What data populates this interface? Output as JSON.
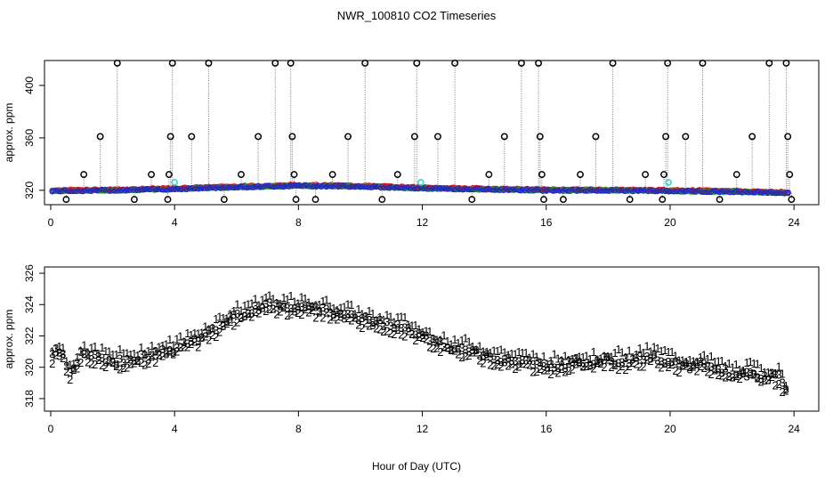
{
  "chart_data": {
    "type": "scatter",
    "title": "NWR_100810  CO2 Timeseries",
    "xlabel": "Hour of Day (UTC)",
    "colors": {
      "black": "#000000",
      "red": "#e41a1c",
      "green": "#1fa51f",
      "blue": "#1f1fd0",
      "cyan": "#33d6d6",
      "gray": "#7a7a7a"
    },
    "panels": [
      {
        "id": "top",
        "ylabel": "approx. ppm",
        "xlim": [
          -0.2,
          24.8
        ],
        "ylim": [
          309,
          419
        ],
        "xticks": [
          0,
          4,
          8,
          12,
          16,
          20,
          24
        ],
        "yticks": [
          320,
          360,
          400
        ],
        "xtick_labels": [
          "0",
          "4",
          "8",
          "12",
          "16",
          "20",
          "24"
        ],
        "ytick_labels": [
          "320",
          "360",
          "400"
        ],
        "cal_spikes": [
          {
            "x": 1.07,
            "y": 332
          },
          {
            "x": 1.6,
            "y": 361
          },
          {
            "x": 2.15,
            "y": 417
          },
          {
            "x": 2.7,
            "y": 313
          },
          {
            "x": 3.25,
            "y": 332
          },
          {
            "x": 3.78,
            "y": 313
          },
          {
            "x": 3.82,
            "y": 332
          },
          {
            "x": 3.87,
            "y": 361
          },
          {
            "x": 3.93,
            "y": 417
          },
          {
            "x": 4.55,
            "y": 361
          },
          {
            "x": 5.1,
            "y": 417
          },
          {
            "x": 5.6,
            "y": 313
          },
          {
            "x": 6.15,
            "y": 332
          },
          {
            "x": 6.7,
            "y": 361
          },
          {
            "x": 7.25,
            "y": 417
          },
          {
            "x": 7.75,
            "y": 417
          },
          {
            "x": 7.8,
            "y": 361
          },
          {
            "x": 7.86,
            "y": 332
          },
          {
            "x": 7.92,
            "y": 313
          },
          {
            "x": 8.55,
            "y": 313
          },
          {
            "x": 9.1,
            "y": 332
          },
          {
            "x": 9.6,
            "y": 361
          },
          {
            "x": 10.15,
            "y": 417
          },
          {
            "x": 10.7,
            "y": 313
          },
          {
            "x": 11.2,
            "y": 332
          },
          {
            "x": 11.75,
            "y": 361
          },
          {
            "x": 11.82,
            "y": 417
          },
          {
            "x": 12.5,
            "y": 361
          },
          {
            "x": 13.05,
            "y": 417
          },
          {
            "x": 13.6,
            "y": 313
          },
          {
            "x": 14.15,
            "y": 332
          },
          {
            "x": 14.65,
            "y": 361
          },
          {
            "x": 15.2,
            "y": 417
          },
          {
            "x": 15.75,
            "y": 417
          },
          {
            "x": 15.8,
            "y": 361
          },
          {
            "x": 15.86,
            "y": 332
          },
          {
            "x": 15.92,
            "y": 313
          },
          {
            "x": 16.55,
            "y": 313
          },
          {
            "x": 17.1,
            "y": 332
          },
          {
            "x": 17.6,
            "y": 361
          },
          {
            "x": 18.15,
            "y": 417
          },
          {
            "x": 18.7,
            "y": 313
          },
          {
            "x": 19.2,
            "y": 332
          },
          {
            "x": 19.75,
            "y": 313
          },
          {
            "x": 19.8,
            "y": 332
          },
          {
            "x": 19.86,
            "y": 361
          },
          {
            "x": 19.92,
            "y": 417
          },
          {
            "x": 20.5,
            "y": 361
          },
          {
            "x": 21.05,
            "y": 417
          },
          {
            "x": 21.6,
            "y": 313
          },
          {
            "x": 22.15,
            "y": 332
          },
          {
            "x": 22.65,
            "y": 361
          },
          {
            "x": 23.2,
            "y": 417
          },
          {
            "x": 23.75,
            "y": 417
          },
          {
            "x": 23.8,
            "y": 361
          },
          {
            "x": 23.86,
            "y": 332
          },
          {
            "x": 23.92,
            "y": 313
          },
          {
            "x": 0.5,
            "y": 313
          }
        ],
        "cyan_points": [
          {
            "x": 4.0,
            "y": 326
          },
          {
            "x": 11.95,
            "y": 326
          },
          {
            "x": 19.95,
            "y": 326
          }
        ]
      },
      {
        "id": "bottom",
        "ylabel": "approx. ppm",
        "xlim": [
          -0.2,
          24.8
        ],
        "ylim": [
          317.2,
          326.4
        ],
        "xticks": [
          0,
          4,
          8,
          12,
          16,
          20,
          24
        ],
        "yticks": [
          318,
          320,
          322,
          324,
          326
        ],
        "xtick_labels": [
          "0",
          "4",
          "8",
          "12",
          "16",
          "20",
          "24"
        ],
        "ytick_labels": [
          "318",
          "320",
          "322",
          "324",
          "326"
        ],
        "series_labels": [
          "1",
          "2",
          "3"
        ]
      }
    ],
    "series": [
      {
        "name": "1",
        "offset": 0.45,
        "noise": 0.3
      },
      {
        "name": "2",
        "offset": -0.25,
        "noise": 0.3
      },
      {
        "name": "3",
        "offset": 0.0,
        "noise": 0.25
      }
    ],
    "base_curve": {
      "x": [
        0,
        0.2,
        0.4,
        0.6,
        1,
        1.5,
        2,
        2.5,
        3,
        3.5,
        4,
        4.5,
        5,
        5.5,
        6,
        6.5,
        7,
        7.5,
        8,
        8.5,
        9,
        9.5,
        10,
        10.5,
        11,
        11.5,
        12,
        12.5,
        13,
        13.5,
        14,
        14.5,
        15,
        15.5,
        16,
        16.5,
        17,
        17.5,
        18,
        18.5,
        19,
        19.5,
        20,
        20.5,
        21,
        21.5,
        22,
        22.5,
        23,
        23.5,
        23.8
      ],
      "y": [
        320.5,
        321.0,
        320.6,
        319.5,
        320.8,
        320.6,
        320.3,
        320.4,
        320.6,
        320.8,
        321.1,
        321.5,
        322.0,
        322.6,
        323.2,
        323.6,
        323.9,
        323.8,
        323.7,
        323.6,
        323.5,
        323.3,
        323.0,
        322.8,
        322.6,
        322.4,
        321.8,
        321.5,
        321.2,
        321.0,
        320.7,
        320.5,
        320.3,
        320.2,
        320.0,
        320.1,
        320.3,
        320.2,
        320.4,
        320.3,
        320.5,
        320.6,
        320.3,
        320.0,
        320.1,
        319.8,
        319.5,
        319.6,
        319.4,
        319.3,
        318.3
      ]
    },
    "top_base_curve": {
      "x": [
        0,
        2,
        4,
        6,
        8,
        10,
        12,
        14,
        16,
        18,
        20,
        22,
        23.8
      ],
      "y": [
        319.5,
        320.0,
        321.0,
        322.5,
        323.5,
        323.0,
        321.5,
        320.8,
        320.0,
        320.0,
        319.5,
        319.0,
        318.0
      ]
    }
  }
}
